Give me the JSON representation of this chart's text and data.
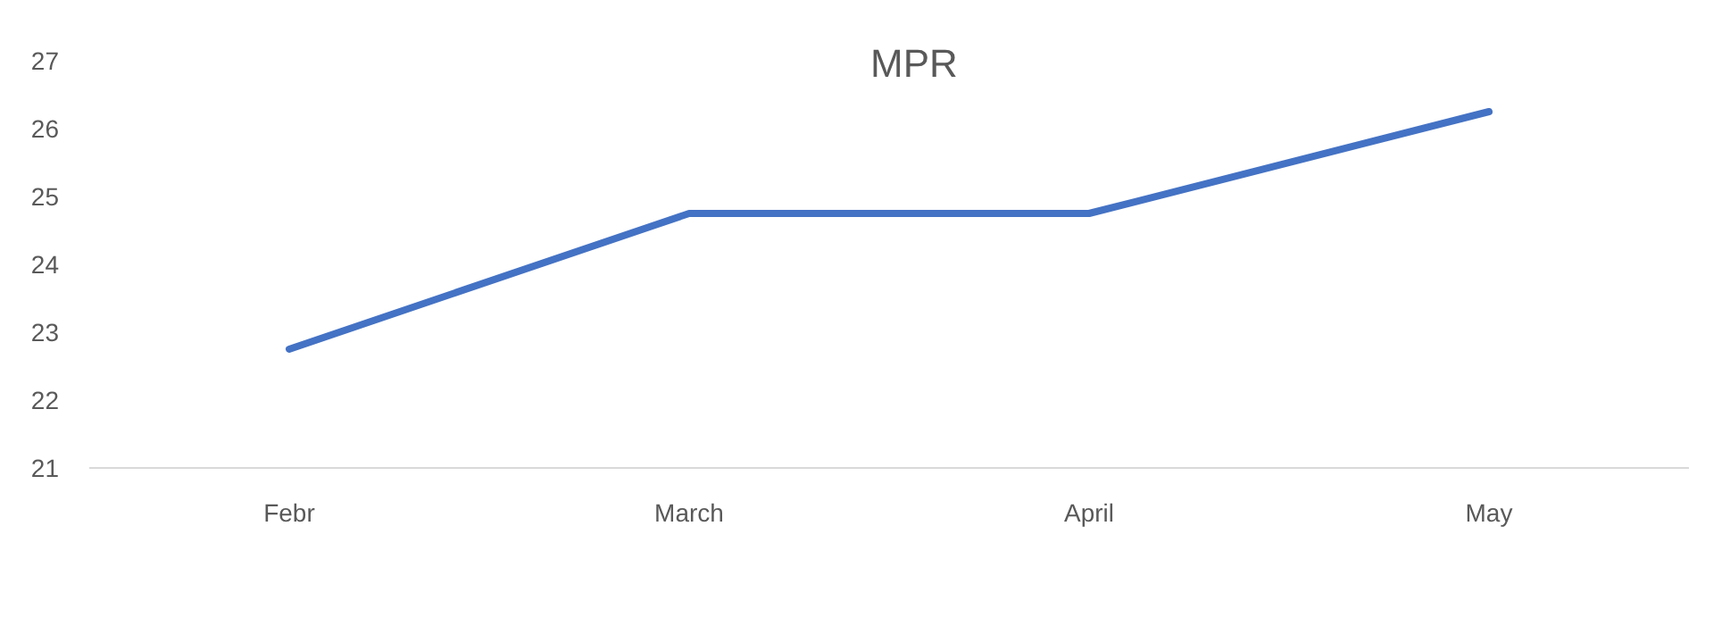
{
  "chart_data": {
    "type": "line",
    "title": "MPR",
    "categories": [
      "Febr",
      "March",
      "April",
      "May"
    ],
    "series": [
      {
        "color": "#4472c4",
        "values": [
          22.75,
          24.75,
          24.75,
          26.25
        ]
      }
    ],
    "ylim": [
      21,
      27
    ],
    "yticks": [
      21,
      22,
      23,
      24,
      25,
      26,
      27
    ],
    "grid": false,
    "marker": "none",
    "line_style": "solid"
  }
}
